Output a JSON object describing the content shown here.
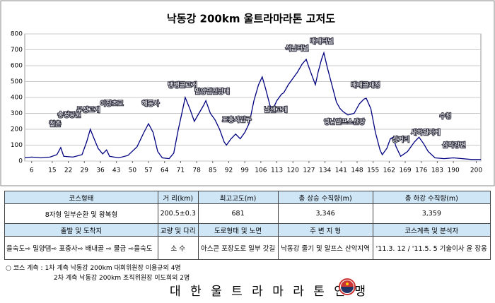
{
  "chart_data": {
    "type": "line",
    "title": "낙동강 200km 울트라마라톤 고저도",
    "x": [
      3,
      6,
      10,
      14,
      17,
      18.7,
      20,
      24,
      28,
      30,
      31.6,
      33,
      35,
      37,
      38.7,
      40,
      44,
      48,
      52,
      55,
      57,
      59,
      61,
      63,
      66,
      68,
      70,
      72,
      73,
      75,
      77,
      79,
      81,
      82,
      84,
      86,
      88,
      90,
      91,
      93,
      95,
      97,
      99,
      101,
      103,
      105,
      106.6,
      108,
      110,
      111,
      113,
      115,
      116,
      118,
      120,
      122,
      124,
      125.8,
      127,
      128.5,
      129.8,
      131,
      132.5,
      133.5,
      135,
      137,
      139,
      140.6,
      142,
      144,
      146.7,
      149,
      151,
      152,
      154,
      156,
      158,
      159,
      161,
      162.5,
      163.7,
      165,
      167,
      170,
      173,
      175,
      177,
      179,
      182,
      186,
      190,
      194,
      198,
      202
    ],
    "values": [
      20,
      25,
      20,
      25,
      40,
      85,
      30,
      25,
      40,
      120,
      200,
      150,
      80,
      45,
      70,
      30,
      20,
      35,
      90,
      180,
      235,
      180,
      60,
      20,
      15,
      50,
      200,
      330,
      400,
      330,
      250,
      300,
      350,
      380,
      300,
      260,
      200,
      120,
      100,
      140,
      170,
      140,
      180,
      240,
      380,
      480,
      530,
      460,
      350,
      320,
      380,
      420,
      430,
      480,
      520,
      560,
      610,
      640,
      590,
      530,
      480,
      560,
      640,
      681,
      590,
      480,
      370,
      330,
      310,
      290,
      300,
      360,
      390,
      395,
      330,
      180,
      70,
      40,
      80,
      140,
      150,
      90,
      30,
      60,
      120,
      150,
      110,
      60,
      20,
      15,
      20,
      15,
      10,
      10
    ],
    "color": "#000080",
    "xlim": [
      3,
      202
    ],
    "ylim": [
      0,
      800
    ],
    "yticks": [
      0,
      100,
      200,
      300,
      400,
      500,
      600,
      700,
      800
    ],
    "xticks": [
      6,
      15,
      22,
      29,
      36,
      43,
      50,
      57,
      64,
      71,
      78,
      85,
      92,
      99,
      106,
      113,
      120,
      127,
      134,
      141,
      148,
      155,
      162,
      169,
      176,
      183,
      190,
      200
    ],
    "grid": true,
    "annotations": [
      "철촌",
      "송정공원",
      "무성고개",
      "이장초교",
      "해동사",
      "뱅뱅골고개",
      "밀양댐전망대",
      "표충사입구",
      "날센고개",
      "석남터널",
      "배내터널",
      "영남알프스산장",
      "배내골재정",
      "수청",
      "상거리",
      "새하일지게",
      "삼락강변"
    ]
  },
  "table": {
    "rows": [
      [
        "코스형태",
        "거 리(km)",
        "최고고도(m)",
        "총 상승 수직량(m)",
        "총 하강 수직량(m)"
      ],
      [
        "8자형 일부순환 및 왕복형",
        "200.5±0.3",
        "681",
        "3,346",
        "3,359"
      ],
      [
        "출발 및 도착지",
        "교량 및 다리",
        "도로형태 및 노면",
        "주 변 지 형",
        "코스계측 및 분석자"
      ],
      [
        "을숙도⇨ 밀양댐⇨ 표충사⇨ 배내골 ⇨ 물금 ⇨을숙도",
        "소 수",
        "아스콘 포장도로 일부 갓길",
        "낙동강 줄기 및 알프스 산악지역",
        "'11.3. 12 / '11.5. 5 기술이사 윤 장웅"
      ]
    ]
  },
  "notes": [
    "○ 코스 계측 : 1차 계측 낙동강 200km 대회위원장 이용규외 4명",
    "2차 계측 낙동강 200km 조직위원장 이도희외 2명"
  ],
  "footer": "대 한 울 트 라 마 라 톤 연 맹"
}
